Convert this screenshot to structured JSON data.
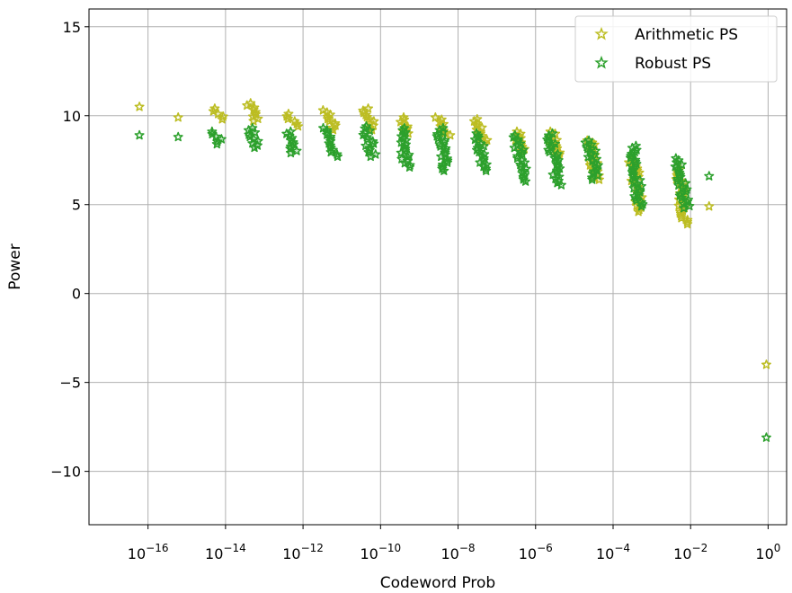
{
  "chart_data": {
    "type": "scatter",
    "xscale": "log",
    "xlabel": "Codeword Prob",
    "ylabel": "Power",
    "xlim": [
      3e-18,
      3.0
    ],
    "ylim": [
      -13,
      16
    ],
    "grid": true,
    "legend_position": "top-right",
    "marker": "star-outline",
    "x_ticks": [
      {
        "value": 1e-16,
        "base": "10",
        "exp": "−16"
      },
      {
        "value": 1e-14,
        "base": "10",
        "exp": "−14"
      },
      {
        "value": 1e-12,
        "base": "10",
        "exp": "−12"
      },
      {
        "value": 1e-10,
        "base": "10",
        "exp": "−10"
      },
      {
        "value": 1e-08,
        "base": "10",
        "exp": "−8"
      },
      {
        "value": 1e-06,
        "base": "10",
        "exp": "−6"
      },
      {
        "value": 0.0001,
        "base": "10",
        "exp": "−4"
      },
      {
        "value": 0.01,
        "base": "10",
        "exp": "−2"
      },
      {
        "value": 1,
        "base": "10",
        "exp": "0"
      }
    ],
    "y_ticks": [
      {
        "value": 15,
        "label": "15"
      },
      {
        "value": 10,
        "label": "10"
      },
      {
        "value": 5,
        "label": "5"
      },
      {
        "value": 0,
        "label": "0"
      },
      {
        "value": -5,
        "label": "−5"
      },
      {
        "value": -10,
        "label": "−10"
      }
    ],
    "series": [
      {
        "name": "Arithmetic PS",
        "color": "#bcbd22",
        "clusters": [
          {
            "x": 6e-17,
            "y_min": 10.5,
            "y_max": 10.5
          },
          {
            "x": 6e-16,
            "y_min": 9.9,
            "y_max": 9.9
          },
          {
            "x": 6e-15,
            "y_min": 9.8,
            "y_max": 10.4
          },
          {
            "x": 5e-14,
            "y_min": 9.7,
            "y_max": 10.7
          },
          {
            "x": 5e-13,
            "y_min": 9.4,
            "y_max": 10.1
          },
          {
            "x": 5e-12,
            "y_min": 9.2,
            "y_max": 10.3
          },
          {
            "x": 5e-11,
            "y_min": 9.2,
            "y_max": 10.4
          },
          {
            "x": 4e-10,
            "y_min": 9.0,
            "y_max": 9.9
          },
          {
            "x": 4e-09,
            "y_min": 8.9,
            "y_max": 9.9
          },
          {
            "x": 4e-08,
            "y_min": 8.5,
            "y_max": 9.8
          },
          {
            "x": 4e-07,
            "y_min": 8.0,
            "y_max": 9.1
          },
          {
            "x": 3e-06,
            "y_min": 7.8,
            "y_max": 9.1
          },
          {
            "x": 3e-05,
            "y_min": 6.4,
            "y_max": 8.6
          },
          {
            "x": 0.0004,
            "y_min": 4.6,
            "y_max": 7.6
          },
          {
            "x": 0.006,
            "y_min": 3.9,
            "y_max": 7.0
          },
          {
            "x": 0.03,
            "y_min": 4.9,
            "y_max": 4.9
          },
          {
            "x": 0.9,
            "y_min": -4.0,
            "y_max": -4.0
          }
        ]
      },
      {
        "name": "Robust PS",
        "color": "#2ca02c",
        "clusters": [
          {
            "x": 6e-17,
            "y_min": 8.9,
            "y_max": 8.9
          },
          {
            "x": 6e-16,
            "y_min": 8.8,
            "y_max": 8.8
          },
          {
            "x": 6e-15,
            "y_min": 8.4,
            "y_max": 9.1
          },
          {
            "x": 5e-14,
            "y_min": 8.2,
            "y_max": 9.3
          },
          {
            "x": 5e-13,
            "y_min": 7.9,
            "y_max": 9.1
          },
          {
            "x": 5e-12,
            "y_min": 7.7,
            "y_max": 9.3
          },
          {
            "x": 5e-11,
            "y_min": 7.7,
            "y_max": 9.4
          },
          {
            "x": 4e-10,
            "y_min": 7.1,
            "y_max": 9.3
          },
          {
            "x": 4e-09,
            "y_min": 6.9,
            "y_max": 9.3
          },
          {
            "x": 4e-08,
            "y_min": 6.9,
            "y_max": 9.0
          },
          {
            "x": 4e-07,
            "y_min": 6.3,
            "y_max": 8.9
          },
          {
            "x": 3e-06,
            "y_min": 6.1,
            "y_max": 9.0
          },
          {
            "x": 3e-05,
            "y_min": 6.4,
            "y_max": 8.6
          },
          {
            "x": 0.0004,
            "y_min": 4.9,
            "y_max": 8.3
          },
          {
            "x": 0.006,
            "y_min": 4.8,
            "y_max": 7.6
          },
          {
            "x": 0.03,
            "y_min": 6.6,
            "y_max": 6.6
          },
          {
            "x": 0.9,
            "y_min": -8.1,
            "y_max": -8.1
          }
        ]
      }
    ]
  }
}
